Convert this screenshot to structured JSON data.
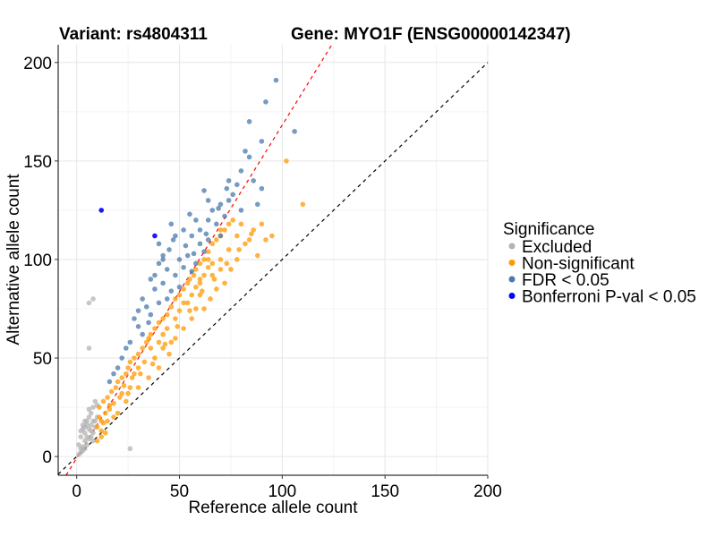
{
  "chart_data": {
    "type": "scatter",
    "title_left": "Variant: rs4804311",
    "title_right": "Gene: MYO1F (ENSG00000142347)",
    "xlabel": "Reference allele count",
    "ylabel": "Alternative allele count",
    "xlim": [
      -9,
      200
    ],
    "ylim": [
      -9.5,
      209
    ],
    "xticks": [
      0,
      50,
      100,
      150,
      200
    ],
    "yticks": [
      0,
      50,
      100,
      150,
      200
    ],
    "xtick_labels": [
      "0",
      "50",
      "100",
      "150",
      "200"
    ],
    "ytick_labels": [
      "0",
      "50",
      "100",
      "150",
      "200"
    ],
    "grid": true,
    "legend": {
      "title": "Significance",
      "position": "right",
      "entries": [
        {
          "label": "Excluded",
          "color": "#b3b3b3"
        },
        {
          "label": "Non-significant",
          "color": "#ff9900"
        },
        {
          "label": "FDR < 0.05",
          "color": "#4a7aab"
        },
        {
          "label": "Bonferroni P-val < 0.05",
          "color": "#0000ff"
        }
      ]
    },
    "reference_lines": [
      {
        "name": "identity",
        "slope": 1.0,
        "intercept": 0,
        "color": "#000000",
        "style": "dashed"
      },
      {
        "name": "fit",
        "slope": 1.69,
        "intercept": -0.8,
        "color": "#ff0000",
        "style": "dashed"
      }
    ],
    "series": [
      {
        "name": "Excluded",
        "color": "#b3b3b3",
        "points": [
          [
            6,
            78
          ],
          [
            8,
            80
          ],
          [
            6,
            55
          ],
          [
            26,
            4
          ],
          [
            2,
            2
          ],
          [
            3,
            5
          ],
          [
            4,
            8
          ],
          [
            5,
            10
          ],
          [
            4,
            12
          ],
          [
            6,
            14
          ],
          [
            7,
            16
          ],
          [
            8,
            18
          ],
          [
            5,
            16
          ],
          [
            3,
            14
          ],
          [
            6,
            20
          ],
          [
            7,
            22
          ],
          [
            8,
            25
          ],
          [
            9,
            28
          ],
          [
            4,
            18
          ],
          [
            2,
            10
          ],
          [
            1,
            6
          ],
          [
            3,
            3
          ],
          [
            5,
            6
          ],
          [
            7,
            10
          ],
          [
            8,
            12
          ],
          [
            9,
            15
          ],
          [
            10,
            20
          ],
          [
            6,
            9
          ],
          [
            2,
            13
          ],
          [
            4,
            4
          ],
          [
            9,
            18
          ],
          [
            7,
            13
          ],
          [
            5,
            18
          ],
          [
            3,
            16
          ],
          [
            8,
            8
          ],
          [
            6,
            24
          ],
          [
            10,
            26
          ],
          [
            1,
            1
          ],
          [
            2,
            4
          ],
          [
            4,
            15
          ]
        ]
      },
      {
        "name": "Non-significant",
        "color": "#ff9900",
        "points": [
          [
            102,
            150
          ],
          [
            110,
            128
          ],
          [
            10,
            15
          ],
          [
            12,
            18
          ],
          [
            14,
            22
          ],
          [
            11,
            25
          ],
          [
            13,
            28
          ],
          [
            15,
            30
          ],
          [
            16,
            24
          ],
          [
            18,
            27
          ],
          [
            12,
            10
          ],
          [
            14,
            12
          ],
          [
            10,
            8
          ],
          [
            11,
            20
          ],
          [
            13,
            17
          ],
          [
            17,
            33
          ],
          [
            19,
            35
          ],
          [
            20,
            38
          ],
          [
            22,
            40
          ],
          [
            24,
            42
          ],
          [
            18,
            20
          ],
          [
            21,
            30
          ],
          [
            23,
            36
          ],
          [
            25,
            45
          ],
          [
            26,
            48
          ],
          [
            28,
            50
          ],
          [
            27,
            40
          ],
          [
            30,
            52
          ],
          [
            32,
            55
          ],
          [
            34,
            58
          ],
          [
            30,
            45
          ],
          [
            26,
            35
          ],
          [
            28,
            42
          ],
          [
            35,
            60
          ],
          [
            36,
            62
          ],
          [
            38,
            65
          ],
          [
            40,
            68
          ],
          [
            33,
            48
          ],
          [
            36,
            55
          ],
          [
            42,
            70
          ],
          [
            44,
            72
          ],
          [
            46,
            76
          ],
          [
            48,
            80
          ],
          [
            40,
            58
          ],
          [
            42,
            62
          ],
          [
            44,
            65
          ],
          [
            50,
            82
          ],
          [
            52,
            85
          ],
          [
            54,
            88
          ],
          [
            48,
            70
          ],
          [
            50,
            74
          ],
          [
            55,
            90
          ],
          [
            57,
            92
          ],
          [
            58,
            95
          ],
          [
            52,
            78
          ],
          [
            56,
            82
          ],
          [
            60,
            98
          ],
          [
            62,
            100
          ],
          [
            64,
            104
          ],
          [
            58,
            86
          ],
          [
            60,
            90
          ],
          [
            62,
            92
          ],
          [
            66,
            108
          ],
          [
            68,
            110
          ],
          [
            70,
            112
          ],
          [
            64,
            96
          ],
          [
            66,
            98
          ],
          [
            72,
            115
          ],
          [
            74,
            118
          ],
          [
            76,
            120
          ],
          [
            70,
            100
          ],
          [
            74,
            105
          ],
          [
            78,
            112
          ],
          [
            80,
            118
          ],
          [
            82,
            108
          ],
          [
            86,
            115
          ],
          [
            88,
            102
          ],
          [
            92,
            110
          ],
          [
            75,
            95
          ],
          [
            72,
            88
          ],
          [
            68,
            85
          ],
          [
            65,
            80
          ],
          [
            62,
            75
          ],
          [
            56,
            70
          ],
          [
            52,
            65
          ],
          [
            48,
            60
          ],
          [
            45,
            52
          ],
          [
            40,
            45
          ],
          [
            35,
            40
          ],
          [
            30,
            35
          ],
          [
            24,
            28
          ],
          [
            20,
            22
          ],
          [
            15,
            18
          ],
          [
            58,
            75
          ],
          [
            46,
            58
          ],
          [
            38,
            50
          ],
          [
            54,
            78
          ],
          [
            60,
            82
          ],
          [
            66,
            92
          ],
          [
            70,
            95
          ],
          [
            78,
            100
          ],
          [
            84,
            110
          ],
          [
            90,
            118
          ],
          [
            95,
            112
          ],
          [
            70,
            115
          ],
          [
            64,
            100
          ],
          [
            60,
            88
          ],
          [
            42,
            55
          ],
          [
            22,
            32
          ],
          [
            16,
            26
          ],
          [
            12,
            13
          ],
          [
            25,
            32
          ],
          [
            31,
            42
          ],
          [
            37,
            47
          ],
          [
            43,
            57
          ],
          [
            49,
            66
          ],
          [
            55,
            74
          ],
          [
            61,
            84
          ],
          [
            67,
            90
          ],
          [
            73,
            98
          ],
          [
            79,
            105
          ],
          [
            85,
            113
          ]
        ]
      },
      {
        "name": "FDR < 0.05",
        "color": "#4a7aab",
        "points": [
          [
            97,
            191
          ],
          [
            92,
            180
          ],
          [
            84,
            170
          ],
          [
            106,
            165
          ],
          [
            90,
            160
          ],
          [
            84,
            152
          ],
          [
            80,
            145
          ],
          [
            74,
            140
          ],
          [
            62,
            135
          ],
          [
            64,
            130
          ],
          [
            70,
            128
          ],
          [
            76,
            133
          ],
          [
            80,
            125
          ],
          [
            88,
            128
          ],
          [
            90,
            136
          ],
          [
            86,
            140
          ],
          [
            55,
            123
          ],
          [
            58,
            120
          ],
          [
            64,
            120
          ],
          [
            68,
            118
          ],
          [
            72,
            122
          ],
          [
            48,
            112
          ],
          [
            52,
            115
          ],
          [
            56,
            112
          ],
          [
            60,
            108
          ],
          [
            64,
            110
          ],
          [
            45,
            105
          ],
          [
            50,
            100
          ],
          [
            54,
            102
          ],
          [
            58,
            98
          ],
          [
            62,
            104
          ],
          [
            40,
            98
          ],
          [
            44,
            95
          ],
          [
            48,
            92
          ],
          [
            52,
            96
          ],
          [
            56,
            94
          ],
          [
            36,
            90
          ],
          [
            38,
            85
          ],
          [
            42,
            88
          ],
          [
            46,
            84
          ],
          [
            50,
            86
          ],
          [
            32,
            80
          ],
          [
            34,
            76
          ],
          [
            36,
            72
          ],
          [
            40,
            78
          ],
          [
            44,
            80
          ],
          [
            28,
            70
          ],
          [
            30,
            66
          ],
          [
            32,
            62
          ],
          [
            26,
            58
          ],
          [
            24,
            55
          ],
          [
            22,
            50
          ],
          [
            20,
            45
          ],
          [
            18,
            42
          ],
          [
            16,
            38
          ],
          [
            46,
            118
          ],
          [
            40,
            108
          ],
          [
            42,
            102
          ],
          [
            60,
            115
          ],
          [
            66,
            125
          ],
          [
            70,
            112
          ],
          [
            74,
            130
          ],
          [
            78,
            138
          ],
          [
            82,
            155
          ],
          [
            35,
            68
          ],
          [
            38,
            92
          ],
          [
            30,
            74
          ],
          [
            42,
            100
          ],
          [
            47,
            110
          ],
          [
            53,
            107
          ],
          [
            57,
            103
          ],
          [
            63,
            113
          ],
          [
            69,
            126
          ],
          [
            73,
            136
          ]
        ]
      },
      {
        "name": "Bonferroni P-val < 0.05",
        "color": "#0000ff",
        "points": [
          [
            12,
            125
          ],
          [
            38,
            112
          ]
        ]
      }
    ]
  }
}
